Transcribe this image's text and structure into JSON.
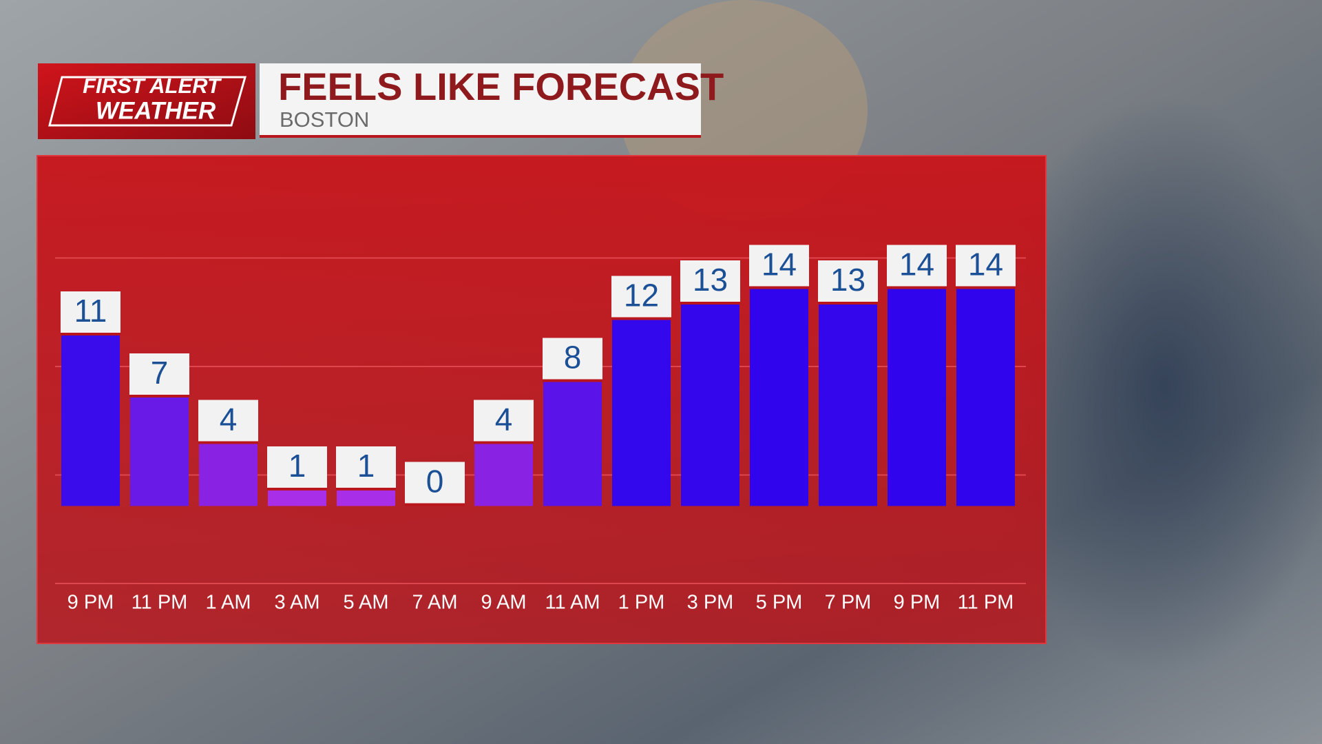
{
  "chart_data": {
    "type": "bar",
    "logo": [
      "FIRST ALERT",
      "WEATHER"
    ],
    "title": "FEELS LIKE FORECAST",
    "subtitle": "BOSTON",
    "categories": [
      "9 PM",
      "11 PM",
      "1 AM",
      "3 AM",
      "5 AM",
      "7 AM",
      "9 AM",
      "11 AM",
      "1 PM",
      "3 PM",
      "5 PM",
      "7 PM",
      "9 PM",
      "11 PM"
    ],
    "values": [
      11,
      7,
      4,
      1,
      1,
      0,
      4,
      8,
      12,
      13,
      14,
      13,
      14,
      14
    ],
    "colors": [
      "#3a0cec",
      "#6a1ae6",
      "#8a22e4",
      "#a82ee8",
      "#a82ee8",
      "#b03ee2",
      "#8a22e4",
      "#5a14ea",
      "#3408ec",
      "#3406ec",
      "#3004ec",
      "#3406ec",
      "#3004ec",
      "#3004ec"
    ],
    "ylim": [
      -5,
      17
    ],
    "yticks": [
      -5,
      2,
      9,
      16
    ],
    "grid": true
  }
}
